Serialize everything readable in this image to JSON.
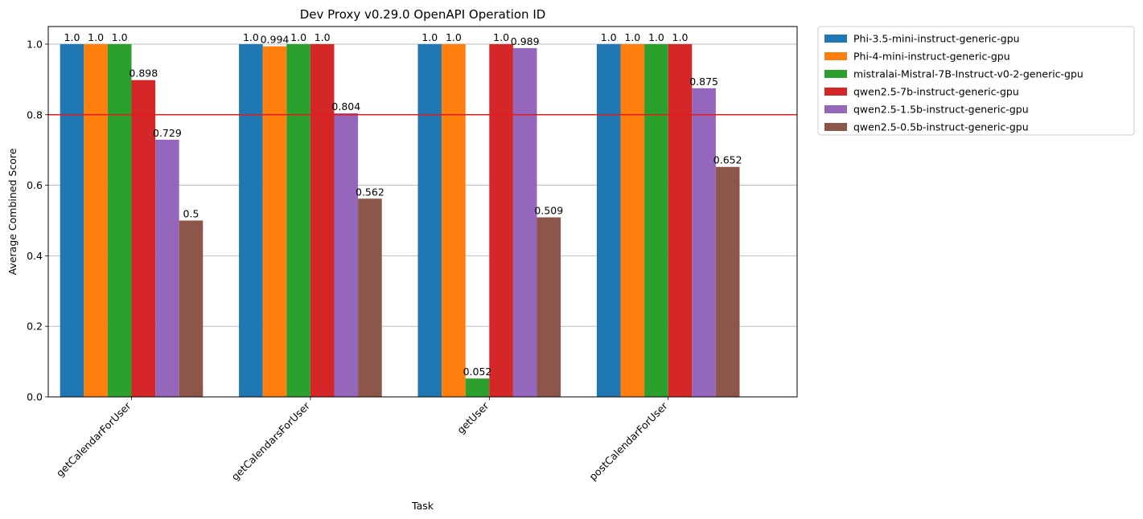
{
  "chart_data": {
    "type": "bar",
    "title": "Dev Proxy v0.29.0 OpenAPI Operation ID",
    "xlabel": "Task",
    "ylabel": "Average Combined Score",
    "ylim": [
      0,
      1.05
    ],
    "yticks": [
      "0.0",
      "0.2",
      "0.4",
      "0.6",
      "0.8",
      "1.0"
    ],
    "grid": "horizontal",
    "legend_position": "outside-top-right",
    "categories": [
      "getCalendarForUser",
      "getCalendarsForUser",
      "getUser",
      "postCalendarForUser"
    ],
    "threshold": {
      "value": 0.8,
      "color": "#e41a1c"
    },
    "series": [
      {
        "name": "Phi-3.5-mini-instruct-generic-gpu",
        "color": "#1f77b4",
        "values": [
          1.0,
          1.0,
          1.0,
          1.0
        ],
        "labels": [
          "1.0",
          "1.0",
          "1.0",
          "1.0"
        ]
      },
      {
        "name": "Phi-4-mini-instruct-generic-gpu",
        "color": "#ff7f0e",
        "values": [
          1.0,
          0.994,
          1.0,
          1.0
        ],
        "labels": [
          "1.0",
          "0.994",
          "1.0",
          "1.0"
        ]
      },
      {
        "name": "mistralai-Mistral-7B-Instruct-v0-2-generic-gpu",
        "color": "#2ca02c",
        "values": [
          1.0,
          1.0,
          0.052,
          1.0
        ],
        "labels": [
          "1.0",
          "1.0",
          "0.052",
          "1.0"
        ]
      },
      {
        "name": "qwen2.5-7b-instruct-generic-gpu",
        "color": "#d62728",
        "values": [
          0.898,
          1.0,
          1.0,
          1.0
        ],
        "labels": [
          "0.898",
          "1.0",
          "1.0",
          "1.0"
        ]
      },
      {
        "name": "qwen2.5-1.5b-instruct-generic-gpu",
        "color": "#9467bd",
        "values": [
          0.729,
          0.804,
          0.989,
          0.875
        ],
        "labels": [
          "0.729",
          "0.804",
          "0.989",
          "0.875"
        ]
      },
      {
        "name": "qwen2.5-0.5b-instruct-generic-gpu",
        "color": "#8c564b",
        "values": [
          0.5,
          0.562,
          0.509,
          0.652
        ],
        "labels": [
          "0.5",
          "0.562",
          "0.509",
          "0.652"
        ]
      }
    ]
  }
}
